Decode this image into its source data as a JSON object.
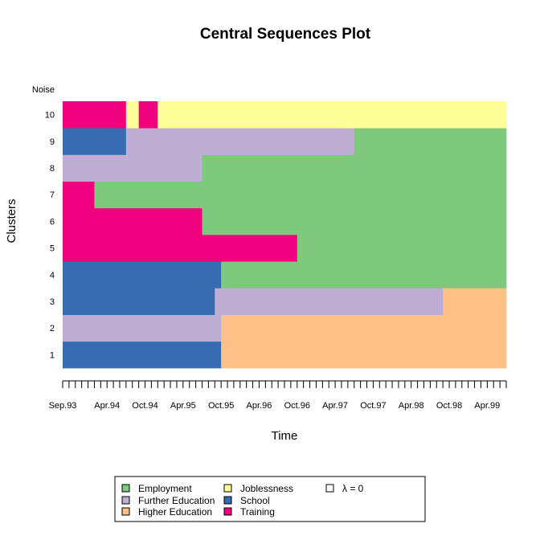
{
  "chart_data": {
    "type": "sequence_index",
    "title": "Central Sequences Plot",
    "xlabel": "Time",
    "ylabel": "Clusters",
    "x_range_months": [
      0,
      70
    ],
    "x_tick_labels": [
      "Sep.93",
      "Apr.94",
      "Oct.94",
      "Apr.95",
      "Oct.95",
      "Apr.96",
      "Oct.96",
      "Apr.97",
      "Oct.97",
      "Apr.98",
      "Oct.98",
      "Apr.99"
    ],
    "x_tick_positions": [
      0,
      7,
      13,
      19,
      25,
      31,
      37,
      43,
      49,
      55,
      61,
      67
    ],
    "y_labels": [
      "1",
      "2",
      "3",
      "4",
      "5",
      "6",
      "7",
      "8",
      "9",
      "10",
      "Noise"
    ],
    "states": [
      {
        "key": "employment",
        "label": "Employment",
        "color": "#7fc97f"
      },
      {
        "key": "further",
        "label": "Further Education",
        "color": "#beaed4"
      },
      {
        "key": "higher",
        "label": "Higher Education",
        "color": "#fdc086"
      },
      {
        "key": "joblessness",
        "label": "Joblessness",
        "color": "#ffff99"
      },
      {
        "key": "school",
        "label": "School",
        "color": "#386cb0"
      },
      {
        "key": "training",
        "label": "Training",
        "color": "#f0027f"
      }
    ],
    "sequences": [
      {
        "cluster": "1",
        "segments": [
          {
            "state": "school",
            "start": 0,
            "end": 25
          },
          {
            "state": "higher",
            "start": 25,
            "end": 70
          }
        ]
      },
      {
        "cluster": "2",
        "segments": [
          {
            "state": "further",
            "start": 0,
            "end": 25
          },
          {
            "state": "higher",
            "start": 25,
            "end": 70
          }
        ]
      },
      {
        "cluster": "3",
        "segments": [
          {
            "state": "school",
            "start": 0,
            "end": 24
          },
          {
            "state": "further",
            "start": 24,
            "end": 60
          },
          {
            "state": "higher",
            "start": 60,
            "end": 70
          }
        ]
      },
      {
        "cluster": "4",
        "segments": [
          {
            "state": "school",
            "start": 0,
            "end": 25
          },
          {
            "state": "employment",
            "start": 25,
            "end": 70
          }
        ]
      },
      {
        "cluster": "5",
        "segments": [
          {
            "state": "training",
            "start": 0,
            "end": 37
          },
          {
            "state": "employment",
            "start": 37,
            "end": 70
          }
        ]
      },
      {
        "cluster": "6",
        "segments": [
          {
            "state": "training",
            "start": 0,
            "end": 22
          },
          {
            "state": "employment",
            "start": 22,
            "end": 70
          }
        ]
      },
      {
        "cluster": "7",
        "segments": [
          {
            "state": "training",
            "start": 0,
            "end": 5
          },
          {
            "state": "employment",
            "start": 5,
            "end": 70
          }
        ]
      },
      {
        "cluster": "8",
        "segments": [
          {
            "state": "further",
            "start": 0,
            "end": 22
          },
          {
            "state": "employment",
            "start": 22,
            "end": 70
          }
        ]
      },
      {
        "cluster": "9",
        "segments": [
          {
            "state": "school",
            "start": 0,
            "end": 10
          },
          {
            "state": "further",
            "start": 10,
            "end": 46
          },
          {
            "state": "employment",
            "start": 46,
            "end": 70
          }
        ]
      },
      {
        "cluster": "10",
        "segments": [
          {
            "state": "training",
            "start": 0,
            "end": 10
          },
          {
            "state": "joblessness",
            "start": 10,
            "end": 12
          },
          {
            "state": "training",
            "start": 12,
            "end": 15
          },
          {
            "state": "joblessness",
            "start": 15,
            "end": 70
          }
        ]
      }
    ],
    "legend_extra": {
      "label": "λ = 0",
      "color": "#ffffff"
    },
    "legend_position": "bottom-center"
  }
}
